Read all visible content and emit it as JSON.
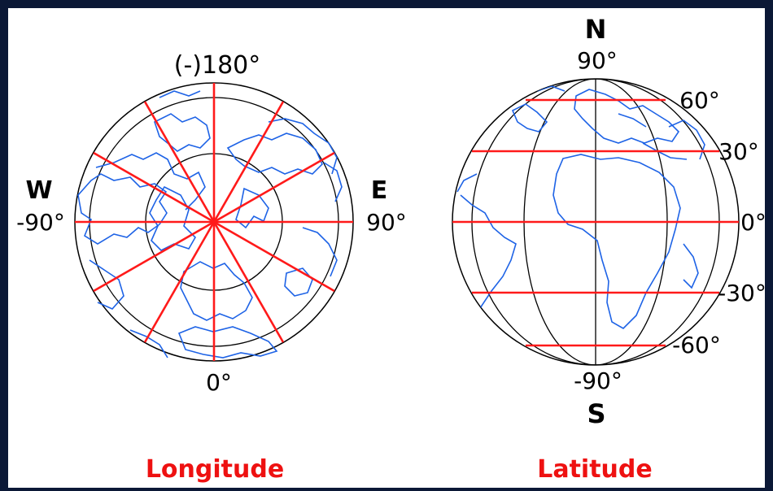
{
  "colors": {
    "background_frame": "#0b1836",
    "panel": "#ffffff",
    "grid_black": "#000000",
    "highlight_red": "#ff1a1a",
    "land_blue": "#1e63e6",
    "title_red": "#ee1111"
  },
  "longitude": {
    "title": "Longitude",
    "top_label": "(-)180°",
    "bottom_label": "0°",
    "west_dir": "W",
    "west_value": "-90°",
    "east_dir": "E",
    "east_value": "90°"
  },
  "latitude": {
    "title": "Latitude",
    "north_dir": "N",
    "north_value": "90°",
    "south_value": "-90°",
    "south_dir": "S",
    "lat_60": "60°",
    "lat_30": "30°",
    "lat_0": "0°",
    "lat_m30": "-30°",
    "lat_m60": "-60°"
  }
}
